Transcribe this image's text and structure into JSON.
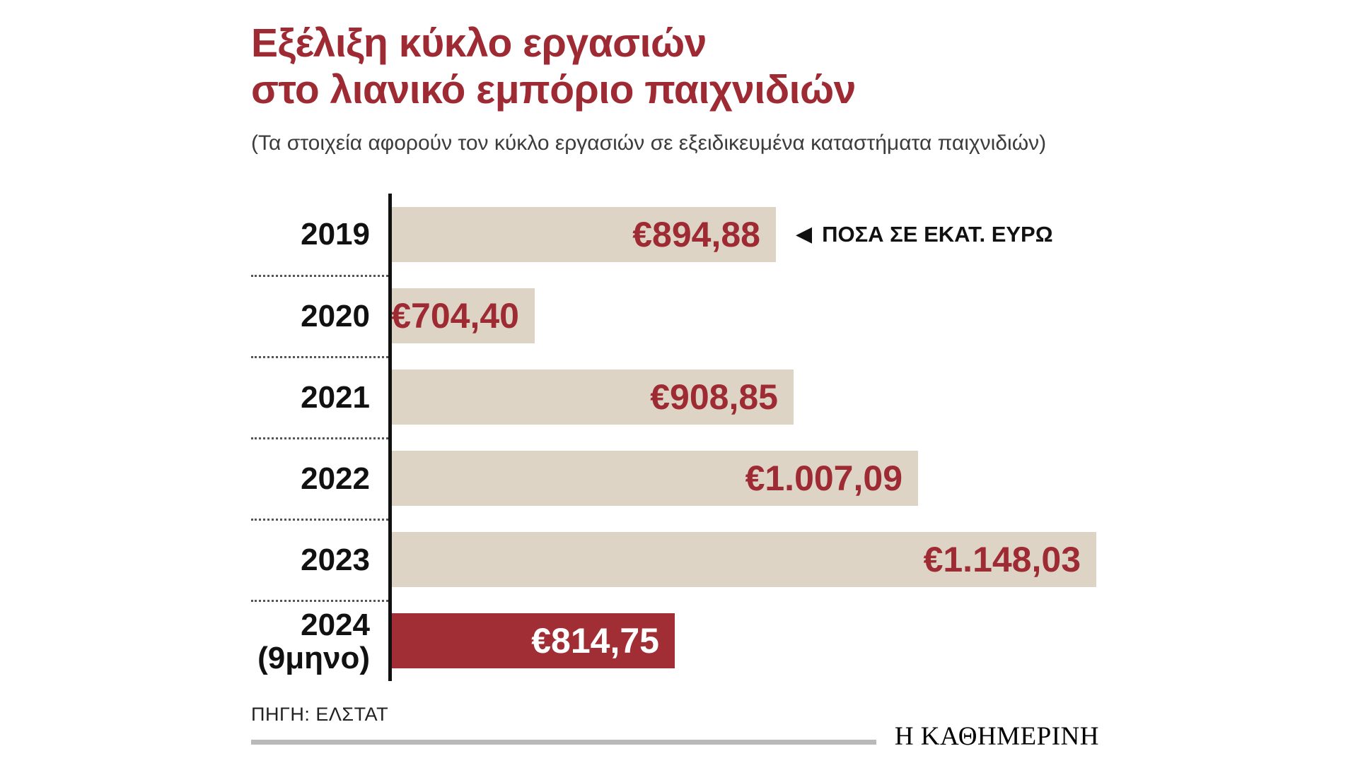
{
  "title": {
    "line1": "Εξέλιξη κύκλο εργασιών",
    "line2": "στο λιανικό εμπόριο παιχνιδιών"
  },
  "subtitle": "(Τα στοιχεία αφορούν τον κύκλο εργασιών σε εξειδικευμένα καταστήματα παιχνιδιών)",
  "annotation": {
    "arrow": "◀",
    "label": "ΠΟΣΑ ΣΕ ΕΚΑΤ. ΕΥΡΩ"
  },
  "source": "ΠΗΓΗ: ΕΛΣΤΑΤ",
  "brand": "Η ΚΑΘΗΜΕΡΙΝΗ",
  "colors": {
    "accent_red": "#9e2b33",
    "bar_beige": "#ddd4c5",
    "bar_highlight_red": "#a12d35",
    "axis_black": "#111111",
    "rule_gray": "#b9b9b9"
  },
  "chart_data": {
    "type": "bar",
    "orientation": "horizontal",
    "title": "Εξέλιξη κύκλο εργασιών στο λιανικό εμπόριο παιχνιδιών",
    "unit": "εκατ. ευρώ",
    "categories": [
      "2019",
      "2020",
      "2021",
      "2022",
      "2023",
      "2024 (9μηνο)"
    ],
    "values": [
      894.88,
      704.4,
      908.85,
      1007.09,
      1148.03,
      814.75
    ],
    "grid": false,
    "legend_position": "none",
    "layout_note": "horizontal bars, not zero-based; final year highlighted in red",
    "rows": [
      {
        "year": "2019",
        "value": 894.88,
        "display": "€894,88",
        "highlight": false
      },
      {
        "year": "2020",
        "value": 704.4,
        "display": "€704,40",
        "highlight": false
      },
      {
        "year": "2021",
        "value": 908.85,
        "display": "€908,85",
        "highlight": false
      },
      {
        "year": "2022",
        "value": 1007.09,
        "display": "€1.007,09",
        "highlight": false
      },
      {
        "year": "2023",
        "value": 1148.03,
        "display": "€1.148,03",
        "highlight": false
      },
      {
        "year": "2024\n(9μηνο)",
        "value": 814.75,
        "display": "€814,75",
        "highlight": true
      }
    ]
  }
}
